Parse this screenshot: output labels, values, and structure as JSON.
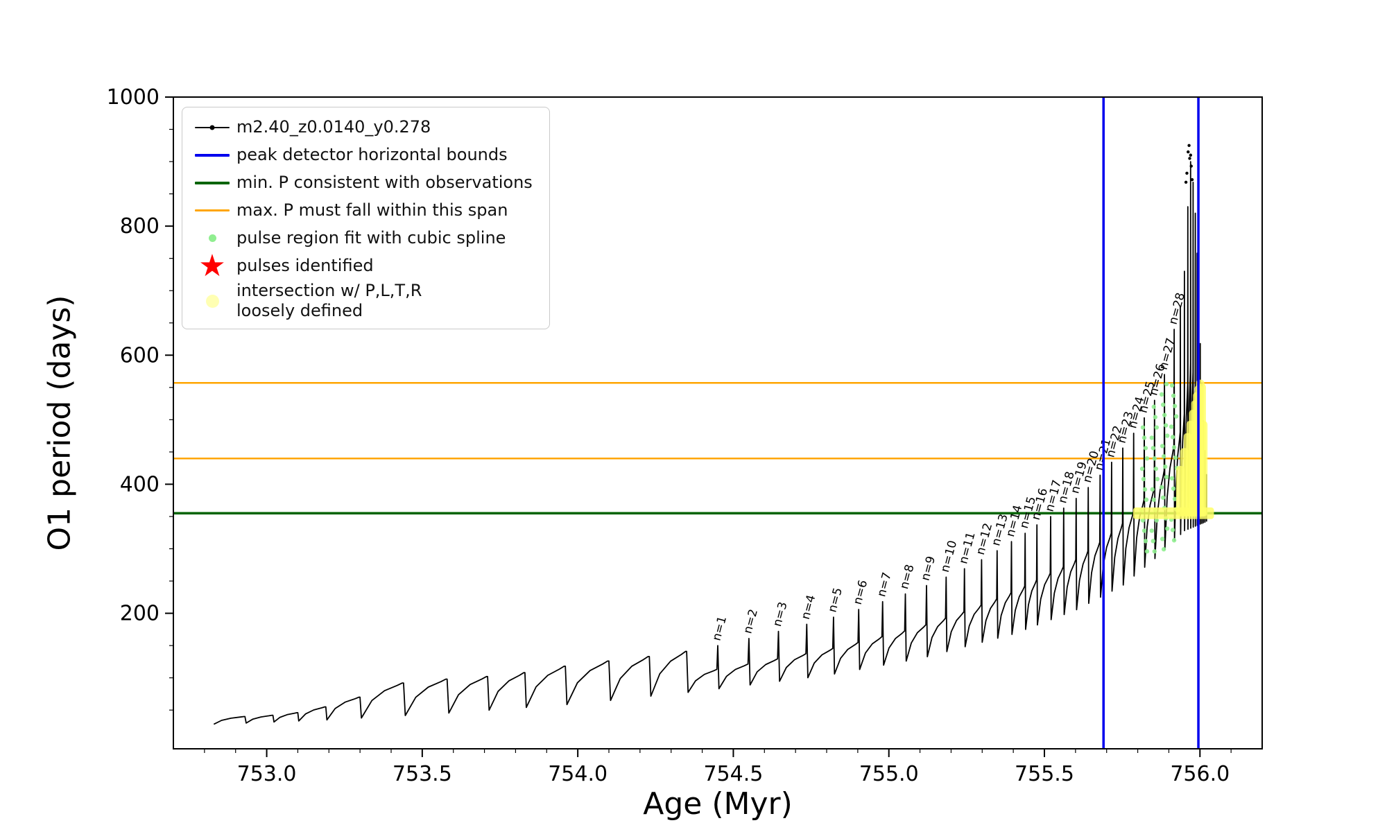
{
  "figure": {
    "background": "#ffffff"
  },
  "chart_data": {
    "type": "line",
    "title": "",
    "xlabel": "Age (Myr)",
    "ylabel": "O1 period (days)",
    "xlim": [
      752.7,
      756.2
    ],
    "ylim": [
      -10,
      1000
    ],
    "xticks": [
      {
        "v": 753.0,
        "label": "753.0"
      },
      {
        "v": 753.5,
        "label": "753.5"
      },
      {
        "v": 754.0,
        "label": "754.0"
      },
      {
        "v": 754.5,
        "label": "754.5"
      },
      {
        "v": 755.0,
        "label": "755.0"
      },
      {
        "v": 755.5,
        "label": "755.5"
      },
      {
        "v": 756.0,
        "label": "756.0"
      }
    ],
    "yticks": [
      {
        "v": 200,
        "label": "200"
      },
      {
        "v": 400,
        "label": "400"
      },
      {
        "v": 600,
        "label": "600"
      },
      {
        "v": 800,
        "label": "800"
      },
      {
        "v": 1000,
        "label": "1000"
      }
    ],
    "x_minor_step": 0.1,
    "y_minor_step": 50,
    "series_label": "m2.40_z0.0140_y0.278",
    "colors": {
      "series": "#000000",
      "peak_bounds": "#0000ee",
      "min_p": "#006400",
      "max_p": "#ffa500",
      "spline": "#90ee90",
      "pulses": "#ff0000",
      "intersection": "#ffff66"
    },
    "vlines": [
      755.69,
      755.995
    ],
    "hline_green": 355,
    "hlines_orange": [
      440,
      557
    ],
    "x_start": 752.83,
    "crest_frac": 0.45,
    "pulse_label_prefix": "n=",
    "baseline": [
      [
        752.83,
        28
      ],
      [
        753.2,
        35
      ],
      [
        753.6,
        46
      ],
      [
        754.0,
        60
      ],
      [
        754.4,
        80
      ],
      [
        754.8,
        104
      ],
      [
        755.1,
        130
      ],
      [
        755.4,
        168
      ],
      [
        755.6,
        205
      ],
      [
        755.75,
        243
      ],
      [
        755.85,
        283
      ],
      [
        755.95,
        328
      ],
      [
        756.03,
        344
      ]
    ],
    "early_teeth": [
      [
        752.93,
        40
      ],
      [
        753.02,
        42
      ],
      [
        753.1,
        46
      ],
      [
        753.19,
        55
      ],
      [
        753.3,
        70
      ],
      [
        753.44,
        92
      ],
      [
        753.58,
        98
      ],
      [
        753.71,
        102
      ],
      [
        753.83,
        108
      ],
      [
        753.96,
        118
      ],
      [
        754.1,
        126
      ],
      [
        754.23,
        133
      ],
      [
        754.35,
        141
      ]
    ],
    "pulses": [
      {
        "n": 1,
        "x": 754.45,
        "peak": 150
      },
      {
        "n": 2,
        "x": 754.55,
        "peak": 161
      },
      {
        "n": 3,
        "x": 754.645,
        "peak": 172
      },
      {
        "n": 4,
        "x": 754.736,
        "peak": 183
      },
      {
        "n": 5,
        "x": 754.822,
        "peak": 194
      },
      {
        "n": 6,
        "x": 754.903,
        "peak": 206
      },
      {
        "n": 7,
        "x": 754.98,
        "peak": 218
      },
      {
        "n": 8,
        "x": 755.053,
        "peak": 230
      },
      {
        "n": 9,
        "x": 755.121,
        "peak": 243
      },
      {
        "n": 10,
        "x": 755.184,
        "peak": 256
      },
      {
        "n": 11,
        "x": 755.243,
        "peak": 269
      },
      {
        "n": 12,
        "x": 755.298,
        "peak": 283
      },
      {
        "n": 13,
        "x": 755.348,
        "peak": 297
      },
      {
        "n": 14,
        "x": 755.394,
        "peak": 311
      },
      {
        "n": 15,
        "x": 755.438,
        "peak": 324
      },
      {
        "n": 16,
        "x": 755.476,
        "peak": 337
      },
      {
        "n": 17,
        "x": 755.52,
        "peak": 350
      },
      {
        "n": 18,
        "x": 755.562,
        "peak": 363
      },
      {
        "n": 19,
        "x": 755.602,
        "peak": 378
      },
      {
        "n": 20,
        "x": 755.641,
        "peak": 395
      },
      {
        "n": 21,
        "x": 755.679,
        "peak": 414
      },
      {
        "n": 22,
        "x": 755.716,
        "peak": 434
      },
      {
        "n": 23,
        "x": 755.752,
        "peak": 456
      },
      {
        "n": 24,
        "x": 755.787,
        "peak": 479
      },
      {
        "n": 25,
        "x": 755.821,
        "peak": 503
      },
      {
        "n": 26,
        "x": 755.854,
        "peak": 530
      },
      {
        "n": 27,
        "x": 755.886,
        "peak": 570
      },
      {
        "n": 28,
        "x": 755.917,
        "peak": 640
      }
    ],
    "tail_spikes": [
      [
        755.937,
        675
      ],
      [
        755.95,
        730
      ],
      [
        755.961,
        830
      ],
      [
        755.97,
        900
      ],
      [
        755.978,
        868
      ],
      [
        755.985,
        820
      ],
      [
        755.991,
        758
      ],
      [
        755.996,
        690
      ],
      [
        756.001,
        618
      ],
      [
        756.006,
        556
      ],
      [
        756.011,
        498
      ],
      [
        756.016,
        452
      ],
      [
        756.021,
        415
      ]
    ],
    "scatter_top": [
      [
        755.962,
        915
      ],
      [
        755.967,
        905
      ],
      [
        755.972,
        893
      ],
      [
        755.958,
        882
      ],
      [
        755.975,
        872
      ],
      [
        755.965,
        925
      ],
      [
        755.955,
        868
      ],
      [
        755.97,
        910
      ]
    ],
    "green_dots": {
      "x_min": 755.815,
      "x_max": 755.932,
      "y_min": 296,
      "y_max": 560,
      "y_step": 16
    },
    "yellow": {
      "band": [
        755.785,
        756.045,
        346,
        364
      ],
      "col_x_min": 755.928,
      "col_x_max": 756.012,
      "col_y0": 350,
      "col_cap": 562,
      "slope_x0": 755.9,
      "slope_rate": 2120
    }
  },
  "legend": {
    "items": [
      {
        "marker": "linedot",
        "color": "#000000",
        "label": "m2.40_z0.0140_y0.278"
      },
      {
        "marker": "line-thick",
        "color": "#0000ee",
        "label": "peak detector horizontal bounds"
      },
      {
        "marker": "line-thick",
        "color": "#006400",
        "label": "min. P consistent with observations"
      },
      {
        "marker": "line",
        "color": "#ffa500",
        "label": "max. P must fall within this span"
      },
      {
        "marker": "dot-small",
        "color": "#90ee90",
        "label": "pulse region fit with cubic spline"
      },
      {
        "marker": "star",
        "color": "#ff0000",
        "label": "pulses identified"
      },
      {
        "marker": "dot-large",
        "color": "#ffffb3",
        "label": "intersection w/ P,L,T,R",
        "label2": "loosely defined"
      }
    ]
  }
}
